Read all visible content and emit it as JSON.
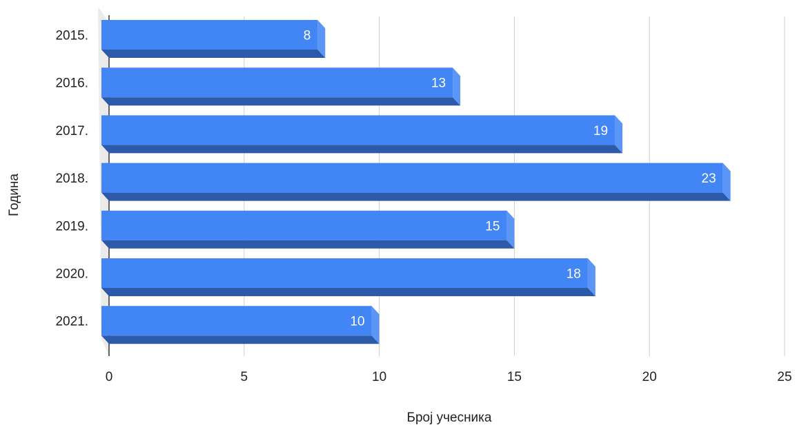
{
  "chart_data": {
    "type": "bar",
    "orientation": "horizontal",
    "style": "3d",
    "categories": [
      "2015.",
      "2016.",
      "2017.",
      "2018.",
      "2019.",
      "2020.",
      "2021."
    ],
    "values": [
      8,
      13,
      19,
      23,
      15,
      18,
      10
    ],
    "data_labels": [
      "8",
      "13",
      "19",
      "23",
      "15",
      "18",
      "10"
    ],
    "xlabel": "Број учесника",
    "ylabel": "Година",
    "xlim": [
      0,
      25
    ],
    "x_ticks": [
      0,
      5,
      10,
      15,
      20,
      25
    ],
    "x_tick_labels": [
      "0",
      "5",
      "10",
      "15",
      "20",
      "25"
    ],
    "grid": "vertical",
    "legend": "none",
    "colors": {
      "bar_face": "#4285f4",
      "bar_bottom": "#2d5aa8",
      "bar_end": "#5b96f7",
      "gridline": "#cccccc",
      "axis": "#333333",
      "floor": "#ebebeb",
      "text": "#222222",
      "data_label": "#ffffff"
    }
  }
}
